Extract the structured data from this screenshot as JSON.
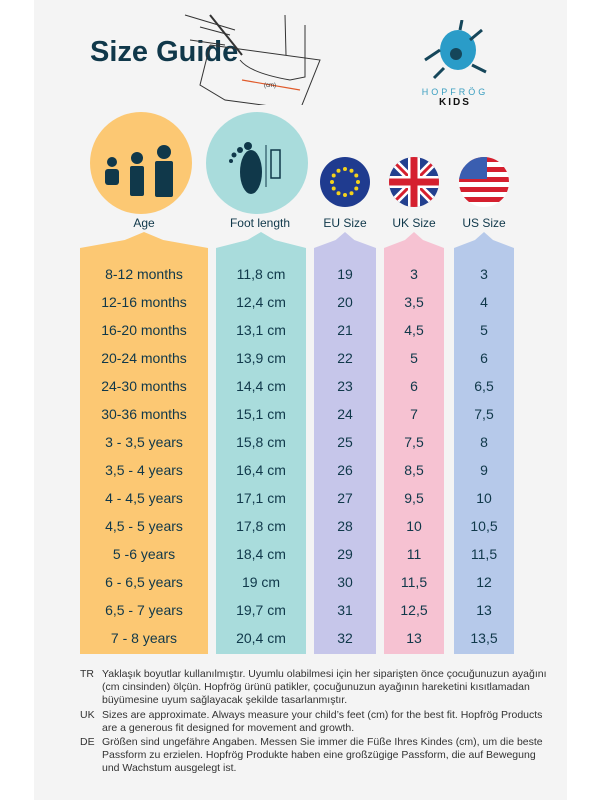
{
  "title": "Size Guide",
  "illustration": {
    "measure_label": "(cm)"
  },
  "logo": {
    "brand": "HOPFRÖG",
    "sub": "KIDS"
  },
  "headers": [
    "Age",
    "Foot length",
    "EU Size",
    "UK Size",
    "US Size"
  ],
  "icons": [
    "family-icon",
    "foot-ruler-icon",
    "eu-flag-icon",
    "uk-flag-icon",
    "us-flag-icon"
  ],
  "colors": {
    "age": "#fcc873",
    "foot": "#a9dcdc",
    "eu": "#c6c6ea",
    "uk": "#f6c2d2",
    "us": "#b6c9ea",
    "text": "#10384a"
  },
  "rows": [
    [
      "8-12 months",
      "11,8 cm",
      "19",
      "3",
      "3"
    ],
    [
      "12-16 months",
      "12,4 cm",
      "20",
      "3,5",
      "4"
    ],
    [
      "16-20 months",
      "13,1 cm",
      "21",
      "4,5",
      "5"
    ],
    [
      "20-24 months",
      "13,9 cm",
      "22",
      "5",
      "6"
    ],
    [
      "24-30 months",
      "14,4 cm",
      "23",
      "6",
      "6,5"
    ],
    [
      "30-36 months",
      "15,1 cm",
      "24",
      "7",
      "7,5"
    ],
    [
      "3 - 3,5 years",
      "15,8 cm",
      "25",
      "7,5",
      "8"
    ],
    [
      "3,5 - 4 years",
      "16,4 cm",
      "26",
      "8,5",
      "9"
    ],
    [
      "4 - 4,5 years",
      "17,1 cm",
      "27",
      "9,5",
      "10"
    ],
    [
      "4,5 - 5 years",
      "17,8 cm",
      "28",
      "10",
      "10,5"
    ],
    [
      "5 -6 years",
      "18,4 cm",
      "29",
      "11",
      "11,5"
    ],
    [
      "6 - 6,5 years",
      "19 cm",
      "30",
      "11,5",
      "12"
    ],
    [
      "6,5 - 7 years",
      "19,7 cm",
      "31",
      "12,5",
      "13"
    ],
    [
      "7 - 8 years",
      "20,4 cm",
      "32",
      "13",
      "13,5"
    ]
  ],
  "notes": [
    {
      "lang": "TR",
      "text": "Yaklaşık boyutlar kullanılmıştır. Uyumlu olabilmesi için her siparişten önce çocuğunuzun ayağını (cm cinsinden) ölçün. Hopfrög ürünü patikler, çocuğunuzun ayağının hareketini kısıtlamadan büyümesine uyum sağlayacak şekilde tasarlanmıştır."
    },
    {
      "lang": "UK",
      "text": "Sizes are approximate. Always measure your child’s feet (cm) for the best fit. Hopfrög Products are a generous fit designed for movement and growth."
    },
    {
      "lang": "DE",
      "text": "Größen sind ungefähre Angaben. Messen Sie immer die Füße Ihres Kindes (cm), um die beste Passform zu erzielen. Hopfrög Produkte haben eine großzügige Passform, die auf Bewegung und Wachstum ausgelegt ist."
    }
  ]
}
